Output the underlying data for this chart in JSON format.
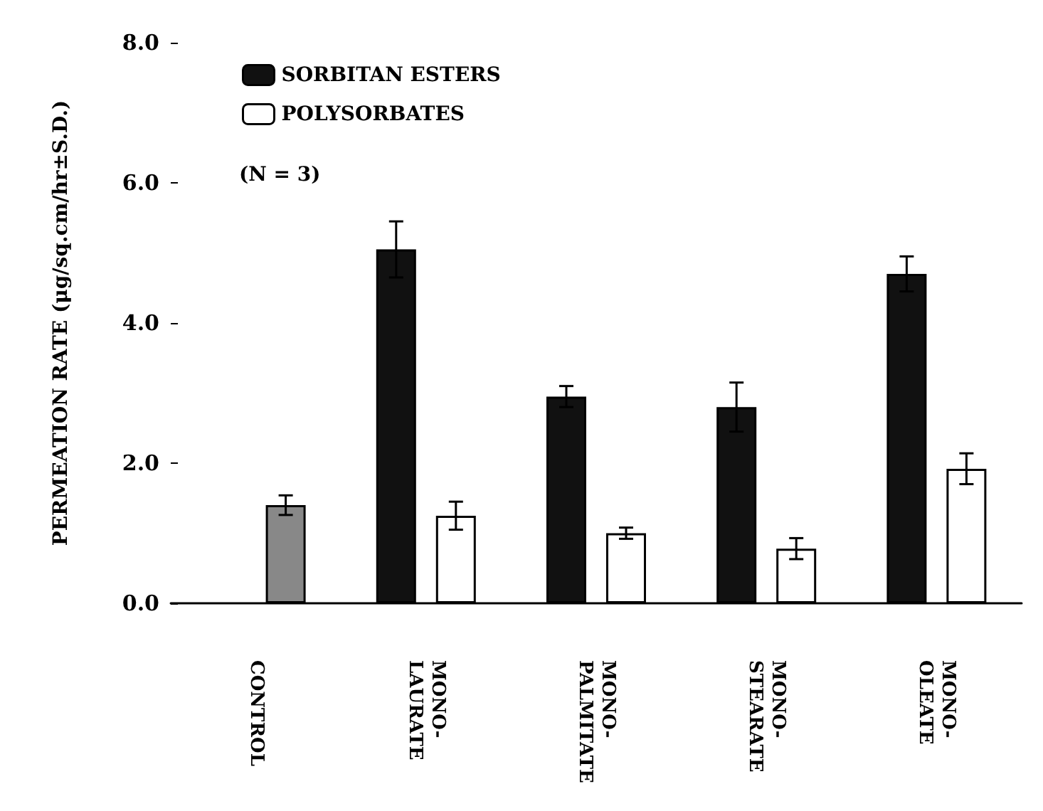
{
  "chart_data": {
    "type": "bar",
    "ylabel": "PERMEATION RATE (μg/sq.cm/hr±S.D.)",
    "categories": [
      "CONTROL",
      "MONO-LAURATE",
      "MONO-PALMITATE",
      "MONO-STEARATE",
      "MONO-OLEATE"
    ],
    "series": [
      {
        "name": "SORBITAN ESTERS",
        "color": "#111111",
        "values": [
          null,
          5.05,
          2.95,
          2.8,
          4.7
        ],
        "errors": [
          null,
          0.4,
          0.15,
          0.35,
          0.25
        ]
      },
      {
        "name": "POLYSORBATES",
        "color": "#ffffff",
        "colors": [
          "#888888",
          "#ffffff",
          "#ffffff",
          "#ffffff",
          "#ffffff"
        ],
        "values": [
          1.4,
          1.25,
          1.0,
          0.78,
          1.92
        ],
        "errors": [
          0.14,
          0.2,
          0.08,
          0.15,
          0.22
        ]
      }
    ],
    "ylim": [
      0,
      8
    ],
    "yticks": [
      {
        "value": 0,
        "label": "0.0"
      },
      {
        "value": 2,
        "label": "2.0"
      },
      {
        "value": 4,
        "label": "4.0"
      },
      {
        "value": 6,
        "label": "6.0"
      },
      {
        "value": 8,
        "label": "8.0"
      }
    ],
    "annotations": [
      "(N = 3)"
    ],
    "grid": false,
    "legend": "top left"
  }
}
